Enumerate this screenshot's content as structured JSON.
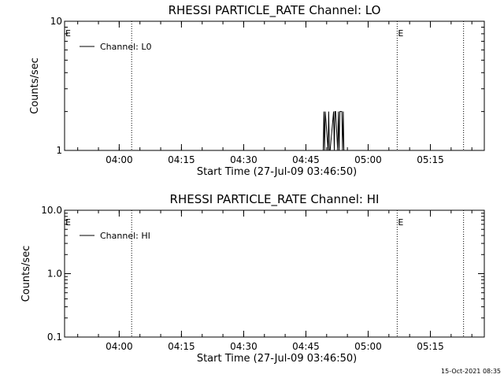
{
  "chart_data": [
    {
      "type": "line",
      "title": "RHESSI PARTICLE_RATE Channel: LO",
      "xlabel": "Start Time (27-Jul-09 03:46:50)",
      "ylabel": "Counts/sec",
      "y_scale": "log",
      "ylim": [
        1,
        10
      ],
      "xlim": [
        "03:46:50",
        "05:28:00"
      ],
      "x_ticks": [
        "04:00",
        "04:15",
        "04:30",
        "04:45",
        "05:00",
        "05:15"
      ],
      "y_ticks": [
        "10",
        "1"
      ],
      "series": [
        {
          "name": "Channel: L0",
          "color": "#000000",
          "x": [
            "04:49:10",
            "04:49:20",
            "04:49:30",
            "04:49:40",
            "04:50:20",
            "04:50:30",
            "04:50:40",
            "04:50:50",
            "04:51:40",
            "04:51:50",
            "04:52:00",
            "04:52:10",
            "04:52:40",
            "04:52:50",
            "04:53:00",
            "04:53:10",
            "04:53:40",
            "04:53:50",
            "04:54:00",
            "04:54:10"
          ],
          "y": [
            1,
            2,
            1,
            2,
            1,
            2,
            1,
            1,
            2,
            1,
            2,
            2,
            1,
            2,
            1,
            2,
            2,
            1,
            2,
            1
          ]
        }
      ],
      "markers": [
        {
          "time": "04:03:00",
          "label": ""
        },
        {
          "time": "05:07:00",
          "label": "E"
        },
        {
          "time": "05:23:00",
          "label": ""
        }
      ],
      "start_marker": "E",
      "legend": "top-left",
      "grid": false
    },
    {
      "type": "line",
      "title": "RHESSI PARTICLE_RATE Channel: HI",
      "xlabel": "Start Time (27-Jul-09 03:46:50)",
      "ylabel": "Counts/sec",
      "y_scale": "log",
      "ylim": [
        0.1,
        10
      ],
      "xlim": [
        "03:46:50",
        "05:28:00"
      ],
      "x_ticks": [
        "04:00",
        "04:15",
        "04:30",
        "04:45",
        "05:00",
        "05:15"
      ],
      "y_ticks": [
        "10.0",
        "1.0",
        "0.1"
      ],
      "series": [
        {
          "name": "Channel: HI",
          "color": "#000000",
          "x": [],
          "y": []
        }
      ],
      "markers": [
        {
          "time": "04:03:00",
          "label": ""
        },
        {
          "time": "05:07:00",
          "label": "E"
        },
        {
          "time": "05:23:00",
          "label": ""
        }
      ],
      "start_marker": "E",
      "legend": "top-left",
      "grid": false
    }
  ],
  "footer": {
    "timestamp": "15-Oct-2021 08:35"
  }
}
